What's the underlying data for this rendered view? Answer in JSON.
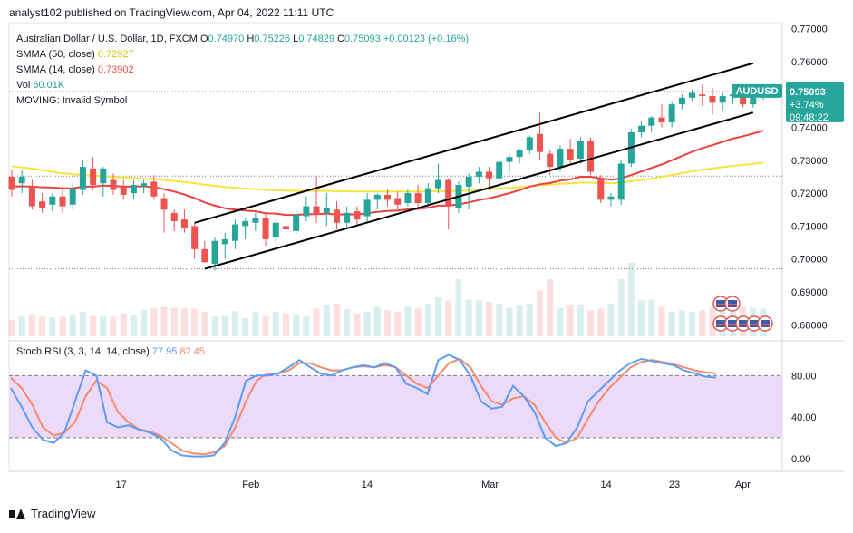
{
  "header": {
    "published_text": "analyst102 published on TradingView.com, Apr 04, 2022 11:11 UTC"
  },
  "legend": {
    "symbol_line": "Australian Dollar / U.S. Dollar, 1D, FXCM",
    "ohlc": [
      {
        "k": "O",
        "v": "0.74970"
      },
      {
        "k": "H",
        "v": "0.75226"
      },
      {
        "k": "L",
        "v": "0.74829"
      },
      {
        "k": "C",
        "v": "0.75093"
      },
      {
        "k": "",
        "v": "+0.00123 (+0.16%)"
      }
    ],
    "sma50_label": "SMMA (50, close)",
    "sma50_value": "0.72927",
    "sma14_label": "SMMA (14, close)",
    "sma14_value": "0.73902",
    "vol_label": "Vol",
    "vol_value": "60.01K",
    "moving_label": "MOVING: Invalid Symbol",
    "stoch_label": "Stoch RSI (3, 3, 14, 14, close)",
    "stoch_k": "77.95",
    "stoch_d": "82.45"
  },
  "price_badge": {
    "symbol": "AUDUSD",
    "price": "0.75093",
    "change": "+3.74%",
    "countdown": "09:48:22"
  },
  "footer": {
    "brand": "TradingView"
  },
  "colors": {
    "up": "#26a69a",
    "down": "#ef5350",
    "sma50": "#f6e53c",
    "sma14": "#ef3f3f",
    "stoch_k": "#5b9cf6",
    "stoch_d": "#f7896d",
    "stoch_band": "#e7d3f7",
    "badge_bg": "#26a69a"
  },
  "chart_data": [
    {
      "type": "candlestick",
      "title": "Australian Dollar / U.S. Dollar, 1D, FXCM",
      "x_ticks": [
        "17",
        "Feb",
        "14",
        "Mar",
        "14",
        "23",
        "Apr"
      ],
      "y_ticks": [
        "0.77000",
        "0.76000",
        "0.75000",
        "0.74000",
        "0.73000",
        "0.72000",
        "0.71000",
        "0.70000",
        "0.69000",
        "0.68000"
      ],
      "ylim": [
        0.6765,
        0.771
      ],
      "candles": [
        {
          "o": 0.725,
          "h": 0.727,
          "l": 0.719,
          "c": 0.721
        },
        {
          "o": 0.723,
          "h": 0.727,
          "l": 0.72,
          "c": 0.725
        },
        {
          "o": 0.722,
          "h": 0.724,
          "l": 0.715,
          "c": 0.716
        },
        {
          "o": 0.7175,
          "h": 0.72,
          "l": 0.714,
          "c": 0.7155
        },
        {
          "o": 0.7165,
          "h": 0.72,
          "l": 0.7145,
          "c": 0.719
        },
        {
          "o": 0.719,
          "h": 0.7215,
          "l": 0.714,
          "c": 0.716
        },
        {
          "o": 0.7165,
          "h": 0.723,
          "l": 0.715,
          "c": 0.7215
        },
        {
          "o": 0.721,
          "h": 0.73,
          "l": 0.7195,
          "c": 0.728
        },
        {
          "o": 0.7275,
          "h": 0.731,
          "l": 0.721,
          "c": 0.7225
        },
        {
          "o": 0.723,
          "h": 0.728,
          "l": 0.719,
          "c": 0.7275
        },
        {
          "o": 0.724,
          "h": 0.726,
          "l": 0.7195,
          "c": 0.721
        },
        {
          "o": 0.722,
          "h": 0.724,
          "l": 0.718,
          "c": 0.7195
        },
        {
          "o": 0.72,
          "h": 0.724,
          "l": 0.718,
          "c": 0.7225
        },
        {
          "o": 0.722,
          "h": 0.724,
          "l": 0.72,
          "c": 0.723
        },
        {
          "o": 0.7235,
          "h": 0.7255,
          "l": 0.718,
          "c": 0.719
        },
        {
          "o": 0.7185,
          "h": 0.72,
          "l": 0.708,
          "c": 0.715
        },
        {
          "o": 0.714,
          "h": 0.715,
          "l": 0.7085,
          "c": 0.7115
        },
        {
          "o": 0.712,
          "h": 0.715,
          "l": 0.708,
          "c": 0.7095
        },
        {
          "o": 0.71,
          "h": 0.711,
          "l": 0.7,
          "c": 0.703
        },
        {
          "o": 0.703,
          "h": 0.7055,
          "l": 0.699,
          "c": 0.699
        },
        {
          "o": 0.6985,
          "h": 0.7065,
          "l": 0.6965,
          "c": 0.7055
        },
        {
          "o": 0.7045,
          "h": 0.708,
          "l": 0.7,
          "c": 0.706
        },
        {
          "o": 0.7055,
          "h": 0.712,
          "l": 0.703,
          "c": 0.7105
        },
        {
          "o": 0.71,
          "h": 0.7125,
          "l": 0.706,
          "c": 0.7115
        },
        {
          "o": 0.711,
          "h": 0.714,
          "l": 0.7085,
          "c": 0.7125
        },
        {
          "o": 0.7125,
          "h": 0.714,
          "l": 0.704,
          "c": 0.706
        },
        {
          "o": 0.7065,
          "h": 0.712,
          "l": 0.705,
          "c": 0.711
        },
        {
          "o": 0.71,
          "h": 0.7135,
          "l": 0.708,
          "c": 0.709
        },
        {
          "o": 0.7085,
          "h": 0.715,
          "l": 0.7075,
          "c": 0.7135
        },
        {
          "o": 0.713,
          "h": 0.719,
          "l": 0.7115,
          "c": 0.716
        },
        {
          "o": 0.716,
          "h": 0.725,
          "l": 0.711,
          "c": 0.7135
        },
        {
          "o": 0.714,
          "h": 0.72,
          "l": 0.71,
          "c": 0.7155
        },
        {
          "o": 0.715,
          "h": 0.7175,
          "l": 0.709,
          "c": 0.711
        },
        {
          "o": 0.711,
          "h": 0.716,
          "l": 0.7095,
          "c": 0.714
        },
        {
          "o": 0.7145,
          "h": 0.716,
          "l": 0.7105,
          "c": 0.712
        },
        {
          "o": 0.713,
          "h": 0.72,
          "l": 0.711,
          "c": 0.718
        },
        {
          "o": 0.718,
          "h": 0.72,
          "l": 0.715,
          "c": 0.7195
        },
        {
          "o": 0.7195,
          "h": 0.721,
          "l": 0.716,
          "c": 0.718
        },
        {
          "o": 0.7185,
          "h": 0.7205,
          "l": 0.715,
          "c": 0.7165
        },
        {
          "o": 0.717,
          "h": 0.721,
          "l": 0.716,
          "c": 0.72
        },
        {
          "o": 0.72,
          "h": 0.7225,
          "l": 0.7155,
          "c": 0.717
        },
        {
          "o": 0.717,
          "h": 0.723,
          "l": 0.716,
          "c": 0.7215
        },
        {
          "o": 0.7215,
          "h": 0.729,
          "l": 0.72,
          "c": 0.724
        },
        {
          "o": 0.724,
          "h": 0.7245,
          "l": 0.709,
          "c": 0.716
        },
        {
          "o": 0.7155,
          "h": 0.7235,
          "l": 0.714,
          "c": 0.7225
        },
        {
          "o": 0.722,
          "h": 0.726,
          "l": 0.715,
          "c": 0.725
        },
        {
          "o": 0.725,
          "h": 0.728,
          "l": 0.723,
          "c": 0.7265
        },
        {
          "o": 0.7265,
          "h": 0.728,
          "l": 0.722,
          "c": 0.7245
        },
        {
          "o": 0.7245,
          "h": 0.73,
          "l": 0.7235,
          "c": 0.7295
        },
        {
          "o": 0.7295,
          "h": 0.732,
          "l": 0.7265,
          "c": 0.731
        },
        {
          "o": 0.731,
          "h": 0.7335,
          "l": 0.729,
          "c": 0.733
        },
        {
          "o": 0.733,
          "h": 0.7375,
          "l": 0.732,
          "c": 0.737
        },
        {
          "o": 0.738,
          "h": 0.7445,
          "l": 0.73,
          "c": 0.7325
        },
        {
          "o": 0.732,
          "h": 0.733,
          "l": 0.7255,
          "c": 0.728
        },
        {
          "o": 0.728,
          "h": 0.7345,
          "l": 0.7265,
          "c": 0.7335
        },
        {
          "o": 0.7335,
          "h": 0.7365,
          "l": 0.729,
          "c": 0.73
        },
        {
          "o": 0.7305,
          "h": 0.737,
          "l": 0.729,
          "c": 0.736
        },
        {
          "o": 0.736,
          "h": 0.737,
          "l": 0.7255,
          "c": 0.7265
        },
        {
          "o": 0.7245,
          "h": 0.7255,
          "l": 0.717,
          "c": 0.718
        },
        {
          "o": 0.718,
          "h": 0.72,
          "l": 0.716,
          "c": 0.719
        },
        {
          "o": 0.718,
          "h": 0.73,
          "l": 0.7165,
          "c": 0.729
        },
        {
          "o": 0.729,
          "h": 0.7395,
          "l": 0.728,
          "c": 0.7385
        },
        {
          "o": 0.7385,
          "h": 0.742,
          "l": 0.737,
          "c": 0.7405
        },
        {
          "o": 0.7405,
          "h": 0.7435,
          "l": 0.7385,
          "c": 0.743
        },
        {
          "o": 0.743,
          "h": 0.747,
          "l": 0.74,
          "c": 0.7415
        },
        {
          "o": 0.7415,
          "h": 0.748,
          "l": 0.74,
          "c": 0.747
        },
        {
          "o": 0.747,
          "h": 0.75,
          "l": 0.7455,
          "c": 0.749
        },
        {
          "o": 0.749,
          "h": 0.7515,
          "l": 0.748,
          "c": 0.7505
        },
        {
          "o": 0.75,
          "h": 0.753,
          "l": 0.7465,
          "c": 0.7495
        },
        {
          "o": 0.7495,
          "h": 0.752,
          "l": 0.744,
          "c": 0.7475
        },
        {
          "o": 0.7475,
          "h": 0.751,
          "l": 0.745,
          "c": 0.7495
        },
        {
          "o": 0.7495,
          "h": 0.7525,
          "l": 0.747,
          "c": 0.75
        },
        {
          "o": 0.7495,
          "h": 0.7505,
          "l": 0.746,
          "c": 0.747
        },
        {
          "o": 0.747,
          "h": 0.75,
          "l": 0.746,
          "c": 0.749
        },
        {
          "o": 0.7497,
          "h": 0.7523,
          "l": 0.7483,
          "c": 0.7509
        }
      ],
      "smma50": [
        0.7282,
        0.7278,
        0.7275,
        0.727,
        0.7265,
        0.726,
        0.7258,
        0.7255,
        0.7253,
        0.7252,
        0.725,
        0.7248,
        0.7246,
        0.7244,
        0.7243,
        0.724,
        0.7237,
        0.7234,
        0.723,
        0.7226,
        0.7222,
        0.7219,
        0.7216,
        0.7214,
        0.7212,
        0.721,
        0.7209,
        0.7208,
        0.7207,
        0.7207,
        0.7207,
        0.7207,
        0.7206,
        0.7206,
        0.7205,
        0.7205,
        0.7205,
        0.7205,
        0.7205,
        0.7205,
        0.7205,
        0.7205,
        0.7206,
        0.7206,
        0.7207,
        0.7208,
        0.721,
        0.7212,
        0.7214,
        0.7216,
        0.7218,
        0.7221,
        0.7224,
        0.7226,
        0.7228,
        0.723,
        0.7232,
        0.7232,
        0.7231,
        0.723,
        0.7232,
        0.7236,
        0.724,
        0.7245,
        0.725,
        0.7255,
        0.7261,
        0.7266,
        0.7271,
        0.7275,
        0.7279,
        0.7283,
        0.7286,
        0.7289,
        0.7293
      ],
      "smma14": [
        0.722,
        0.7221,
        0.722,
        0.7218,
        0.7217,
        0.7215,
        0.7215,
        0.722,
        0.722,
        0.7223,
        0.7222,
        0.722,
        0.722,
        0.7221,
        0.7218,
        0.7212,
        0.7205,
        0.7196,
        0.7185,
        0.7172,
        0.7162,
        0.7154,
        0.715,
        0.7147,
        0.7145,
        0.7139,
        0.7138,
        0.7134,
        0.7134,
        0.7136,
        0.7136,
        0.7138,
        0.7135,
        0.7136,
        0.7135,
        0.7139,
        0.7143,
        0.7146,
        0.7147,
        0.7151,
        0.7152,
        0.7156,
        0.7162,
        0.7162,
        0.7166,
        0.7172,
        0.7179,
        0.7184,
        0.7192,
        0.72,
        0.7209,
        0.722,
        0.7227,
        0.7231,
        0.7238,
        0.7242,
        0.725,
        0.725,
        0.7245,
        0.7241,
        0.7245,
        0.7255,
        0.7266,
        0.7277,
        0.7287,
        0.73,
        0.7313,
        0.7326,
        0.7337,
        0.7346,
        0.7356,
        0.7366,
        0.7373,
        0.7381,
        0.739
      ],
      "volume": [
        20,
        24,
        26,
        24,
        23,
        24,
        26,
        30,
        25,
        24,
        24,
        28,
        26,
        32,
        34,
        36,
        35,
        34,
        34,
        30,
        24,
        25,
        31,
        22,
        30,
        24,
        30,
        28,
        26,
        24,
        34,
        38,
        40,
        33,
        28,
        30,
        36,
        32,
        30,
        36,
        34,
        40,
        48,
        44,
        70,
        45,
        44,
        42,
        40,
        35,
        38,
        40,
        56,
        70,
        35,
        38,
        38,
        32,
        34,
        40,
        70,
        90,
        44,
        45,
        36,
        30,
        32,
        30,
        32,
        36,
        38,
        38,
        36,
        35,
        34
      ],
      "channel": [
        {
          "name": "upper",
          "from": {
            "i": 18,
            "y": 0.711
          },
          "to": {
            "i": 73,
            "y": 0.7595
          }
        },
        {
          "name": "lower",
          "from": {
            "i": 19,
            "y": 0.697
          },
          "to": {
            "i": 73,
            "y": 0.7445
          }
        }
      ],
      "last_price": 0.75093
    },
    {
      "type": "line",
      "title": "Stoch RSI (3, 3, 14, 14, close)",
      "y_ticks": [
        "80.00",
        "40.00",
        "0.00"
      ],
      "ylim": [
        -8,
        110
      ],
      "bands": {
        "upper": 80,
        "lower": 20
      },
      "series": [
        {
          "name": "K",
          "values": [
            68,
            50,
            30,
            18,
            15,
            25,
            55,
            85,
            80,
            35,
            30,
            32,
            28,
            25,
            20,
            8,
            3,
            2,
            2,
            3,
            15,
            40,
            75,
            80,
            80,
            82,
            88,
            95,
            88,
            82,
            80,
            85,
            88,
            90,
            88,
            92,
            88,
            72,
            68,
            62,
            95,
            100,
            95,
            80,
            55,
            48,
            50,
            70,
            60,
            45,
            20,
            12,
            15,
            30,
            55,
            65,
            75,
            85,
            92,
            96,
            94,
            92,
            90,
            85,
            82,
            79,
            78
          ]
        },
        {
          "name": "D",
          "values": [
            78,
            68,
            52,
            30,
            22,
            25,
            35,
            60,
            75,
            68,
            45,
            35,
            28,
            26,
            22,
            15,
            8,
            5,
            4,
            6,
            12,
            30,
            55,
            75,
            82,
            82,
            85,
            92,
            92,
            88,
            85,
            85,
            88,
            89,
            88,
            90,
            88,
            80,
            72,
            68,
            80,
            92,
            96,
            88,
            70,
            55,
            52,
            58,
            60,
            52,
            35,
            20,
            15,
            20,
            38,
            55,
            68,
            78,
            88,
            93,
            95,
            93,
            91,
            88,
            85,
            83,
            82
          ]
        }
      ]
    }
  ]
}
